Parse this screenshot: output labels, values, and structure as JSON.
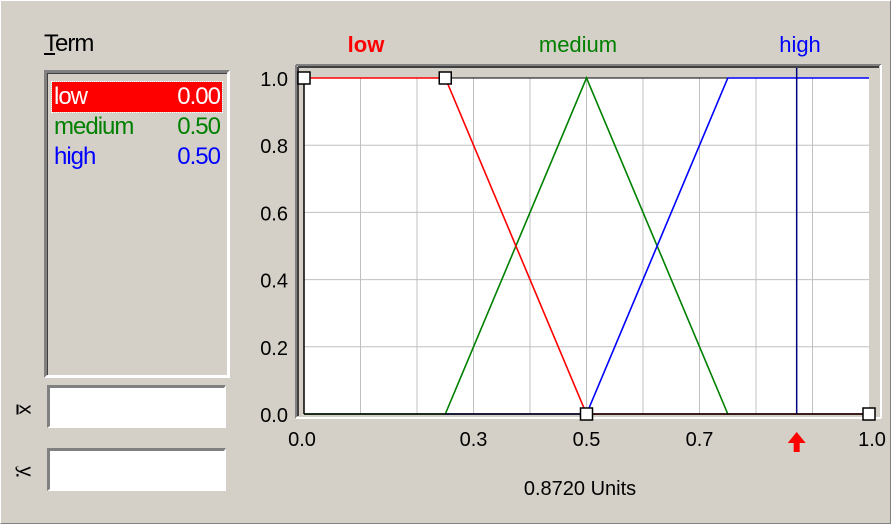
{
  "term_panel": {
    "label": "Term",
    "items": [
      {
        "name": "low",
        "value": "0.00",
        "color": "#ff0000",
        "selected": true
      },
      {
        "name": "medium",
        "value": "0.50",
        "color": "#008000",
        "selected": false
      },
      {
        "name": "high",
        "value": "0.50",
        "color": "#0000ff",
        "selected": false
      }
    ]
  },
  "fields": {
    "x_label": "x",
    "y_label": "y",
    "x_value": "",
    "y_value": ""
  },
  "chart_data": {
    "type": "line",
    "title_terms": [
      {
        "name": "low",
        "color": "#ff0000"
      },
      {
        "name": "medium",
        "color": "#008000"
      },
      {
        "name": "high",
        "color": "#0000ff"
      }
    ],
    "xlim": [
      0.0,
      1.0
    ],
    "ylim": [
      0.0,
      1.0
    ],
    "x_ticks": [
      "0.0",
      "0.3",
      "0.5",
      "0.7",
      "1.0"
    ],
    "x_tick_values": [
      0.0,
      0.3,
      0.5,
      0.7,
      1.0
    ],
    "y_ticks": [
      "1.0",
      "0.8",
      "0.6",
      "0.4",
      "0.2",
      "0.0"
    ],
    "y_tick_values": [
      1.0,
      0.8,
      0.6,
      0.4,
      0.2,
      0.0
    ],
    "grid": true,
    "series": [
      {
        "name": "low",
        "color": "#ff0000",
        "points": [
          [
            0.0,
            1.0
          ],
          [
            0.25,
            1.0
          ],
          [
            0.5,
            0.0
          ],
          [
            1.0,
            0.0
          ]
        ]
      },
      {
        "name": "medium",
        "color": "#008000",
        "points": [
          [
            0.0,
            0.0
          ],
          [
            0.25,
            0.0
          ],
          [
            0.5,
            1.0
          ],
          [
            0.75,
            0.0
          ]
        ]
      },
      {
        "name": "high",
        "color": "#0000ff",
        "points": [
          [
            0.25,
            0.0
          ],
          [
            0.5,
            0.0
          ],
          [
            0.75,
            1.0
          ],
          [
            1.0,
            1.0
          ]
        ]
      }
    ],
    "handles": [
      [
        0.0,
        1.0
      ],
      [
        0.25,
        1.0
      ],
      [
        0.5,
        0.0
      ],
      [
        1.0,
        0.0
      ]
    ],
    "cursor_x": 0.872,
    "cursor_label": "0.8720 Units"
  }
}
